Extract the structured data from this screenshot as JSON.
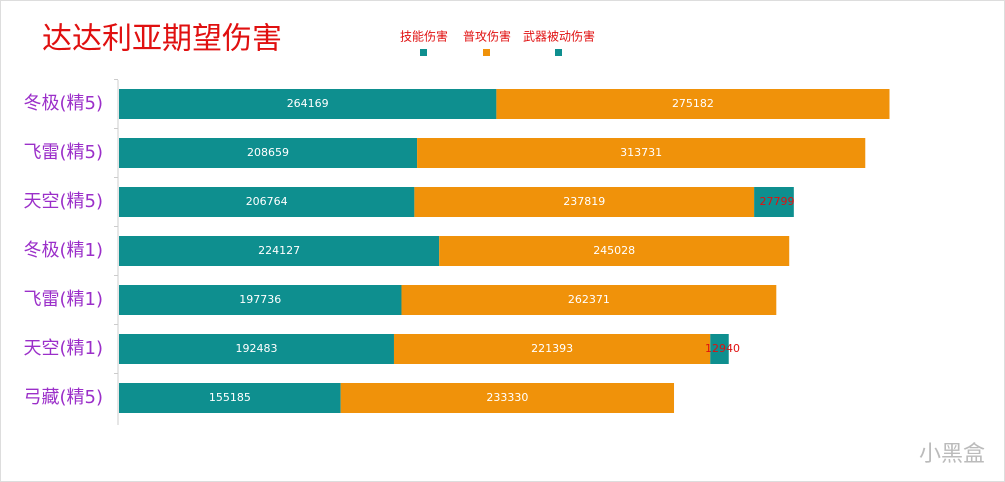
{
  "chart_data": {
    "type": "stacked-bar-horizontal",
    "title": "达达利亚期望伤害",
    "categories": [
      "冬极(精5)",
      "飞雷(精5)",
      "天空(精5)",
      "冬极(精1)",
      "飞雷(精1)",
      "天空(精1)",
      "弓藏(精5)"
    ],
    "series": [
      {
        "name": "技能伤害",
        "color": "#0e8f8f",
        "label_color": "#ffffff",
        "values": [
          264169,
          208659,
          206764,
          224127,
          197736,
          192483,
          155185
        ]
      },
      {
        "name": "普攻伤害",
        "color": "#f0920a",
        "label_color": "#ffffff",
        "values": [
          275182,
          313731,
          237819,
          245028,
          262371,
          221393,
          233330
        ]
      },
      {
        "name": "武器被动伤害",
        "color": "#0e8f8f",
        "label_color": "#e01010",
        "values": [
          null,
          null,
          27799,
          null,
          null,
          12940,
          null
        ]
      }
    ],
    "xlim": [
      0,
      560000
    ],
    "watermark": "小黑盒"
  }
}
